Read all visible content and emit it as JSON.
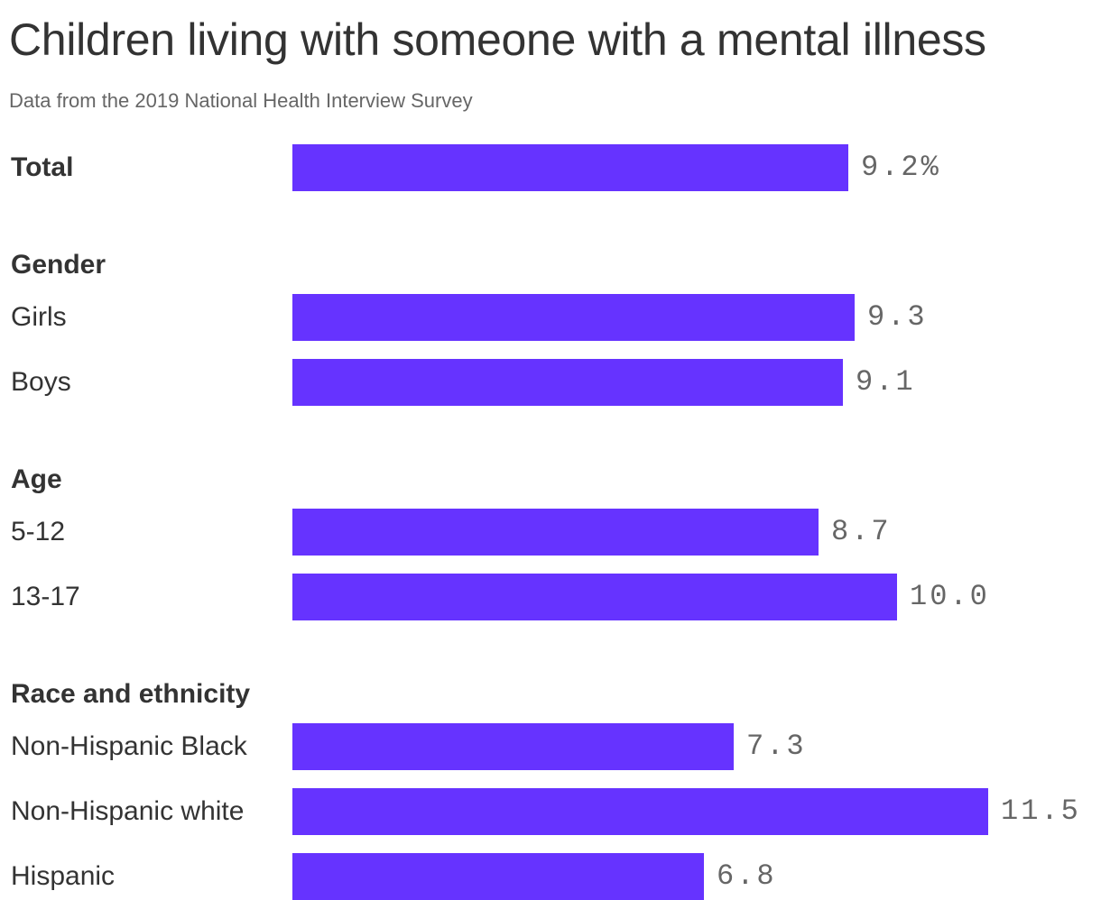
{
  "header": {
    "title": "Children living with someone with a mental illness",
    "subtitle": "Data from the 2019 National Health Interview Survey"
  },
  "colors": {
    "bar": "#6633ff",
    "text": "#333333",
    "muted": "#666666"
  },
  "chart_data": {
    "type": "bar",
    "orientation": "horizontal",
    "title": "Children living with someone with a mental illness",
    "subtitle": "Data from the 2019 National Health Interview Survey",
    "xlim": [
      0,
      12
    ],
    "grid": false,
    "legend": "none",
    "unit": "%",
    "groups": [
      {
        "name": "",
        "items": [
          {
            "label": "Total",
            "value": 9.2,
            "display": "9.2%",
            "bold": true
          }
        ]
      },
      {
        "name": "Gender",
        "items": [
          {
            "label": "Girls",
            "value": 9.3,
            "display": "9.3"
          },
          {
            "label": "Boys",
            "value": 9.1,
            "display": "9.1"
          }
        ]
      },
      {
        "name": "Age",
        "items": [
          {
            "label": "5-12",
            "value": 8.7,
            "display": "8.7"
          },
          {
            "label": "13-17",
            "value": 10.0,
            "display": "10.0"
          }
        ]
      },
      {
        "name": "Race and ethnicity",
        "items": [
          {
            "label": "Non-Hispanic Black",
            "value": 7.3,
            "display": "7.3"
          },
          {
            "label": "Non-Hispanic white",
            "value": 11.5,
            "display": "11.5"
          },
          {
            "label": "Hispanic",
            "value": 6.8,
            "display": "6.8"
          }
        ]
      }
    ]
  }
}
